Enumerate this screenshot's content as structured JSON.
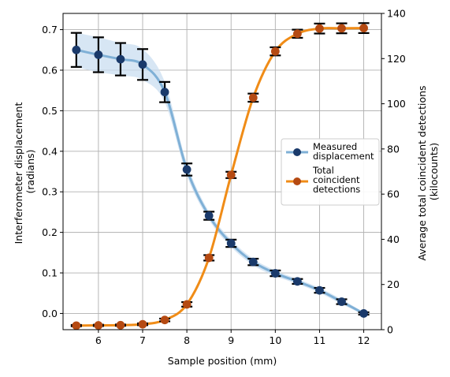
{
  "chart_data": {
    "type": "line",
    "title": "",
    "xlabel": "Sample position (mm)",
    "ylabel_left": [
      "Interferometer displacement",
      "(radians)"
    ],
    "ylabel_right": [
      "Average total coincident detections",
      "(kilocounts)"
    ],
    "xlim": [
      5.2,
      12.4
    ],
    "ylim_left": [
      -0.04,
      0.74
    ],
    "ylim_right": [
      0,
      140
    ],
    "x_ticks": [
      6,
      7,
      8,
      9,
      10,
      11,
      12
    ],
    "y_ticks_left": [
      0.0,
      0.1,
      0.2,
      0.3,
      0.4,
      0.5,
      0.6,
      0.7
    ],
    "y_ticks_right": [
      0,
      20,
      40,
      60,
      80,
      100,
      120,
      140
    ],
    "grid": true,
    "legend_position": "center-right",
    "x": [
      5.5,
      6.0,
      6.5,
      7.0,
      7.5,
      8.0,
      8.5,
      9.0,
      9.5,
      10.0,
      10.5,
      11.0,
      11.5,
      12.0
    ],
    "series": [
      {
        "name": "Measured displacement",
        "axis": "left",
        "color": "#1a3a6b",
        "line_color": "#7fb0d6",
        "band_color": "#c9def0",
        "values": [
          0.65,
          0.638,
          0.627,
          0.614,
          0.546,
          0.355,
          0.241,
          0.173,
          0.127,
          0.099,
          0.079,
          0.057,
          0.029,
          0.0
        ],
        "errors": [
          0.042,
          0.043,
          0.04,
          0.038,
          0.025,
          0.015,
          0.01,
          0.009,
          0.008,
          0.007,
          0.006,
          0.006,
          0.006,
          0.003
        ]
      },
      {
        "name": "Total coincident detections",
        "axis": "right",
        "color": "#b54a12",
        "line_color": "#f08c17",
        "values": [
          1.8,
          1.9,
          2.0,
          2.4,
          4.3,
          11.2,
          31.8,
          68.5,
          102.7,
          123.2,
          131.0,
          133.3,
          133.4,
          133.5
        ],
        "errors": [
          0.3,
          0.3,
          0.3,
          0.4,
          0.6,
          1.0,
          1.2,
          1.4,
          1.8,
          1.8,
          1.8,
          2.2,
          2.2,
          2.2
        ]
      }
    ],
    "legend": [
      {
        "lines": [
          "Measured",
          "displacement"
        ]
      },
      {
        "lines": [
          "Total",
          "coincident",
          "detections"
        ]
      }
    ]
  }
}
